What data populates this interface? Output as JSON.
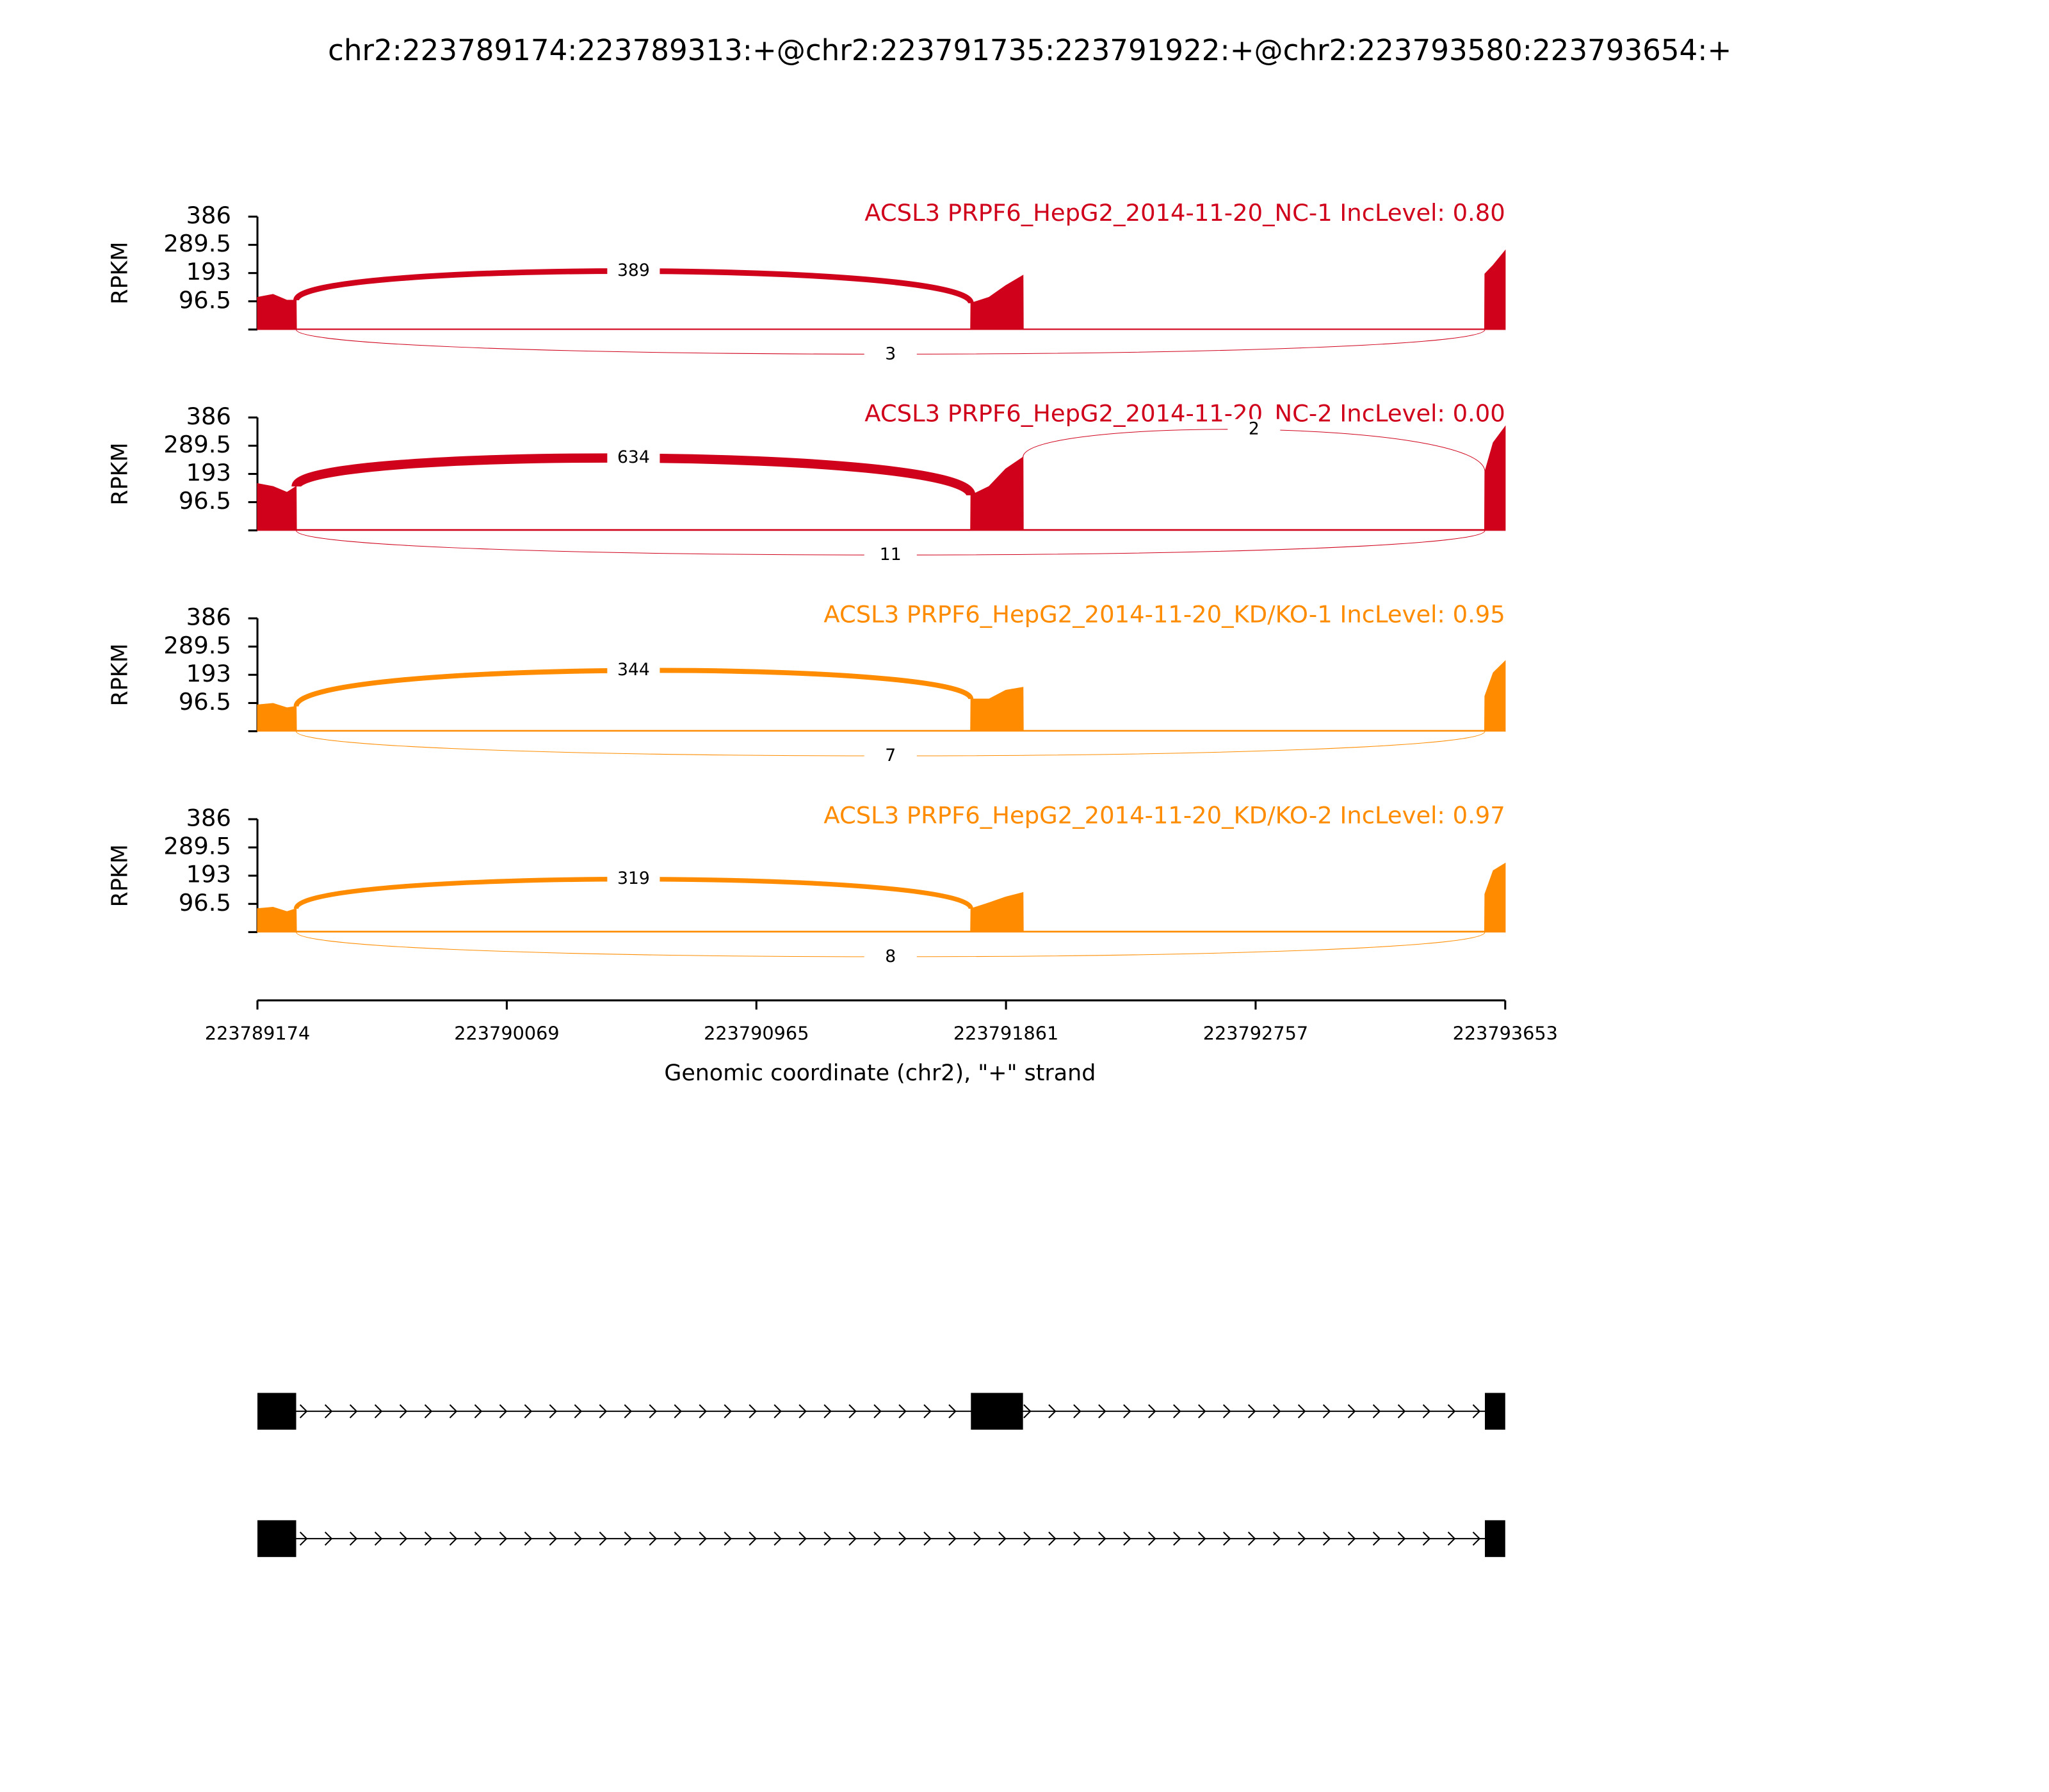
{
  "chart_data": {
    "type": "sashimi",
    "title": "chr2:223789174:223789313:+@chr2:223791735:223791922:+@chr2:223793580:223793654:+",
    "xlabel": "Genomic coordinate (chr2), \"+\" strand",
    "ylabel": "RPKM",
    "xlim": [
      223789174,
      223793653
    ],
    "xticks": [
      223789174,
      223790069,
      223790965,
      223791861,
      223792757,
      223793653
    ],
    "ylim": [
      0,
      386
    ],
    "yticks": [
      96.5,
      193,
      289.5,
      386
    ],
    "coverage_x": [
      223789174,
      223789230,
      223789280,
      223789313,
      223789314,
      223791734,
      223791735,
      223791800,
      223791860,
      223791922,
      223791923,
      223793579,
      223793580,
      223793610,
      223793653
    ],
    "panels": [
      {
        "name": "ACSL3 PRPF6_HepG2_2014-11-20_NC-1 IncLevel: 0.80",
        "color": "#d0021b",
        "coverage": [
          110,
          120,
          100,
          100,
          2,
          2,
          90,
          110,
          150,
          185,
          2,
          2,
          190,
          220,
          270
        ],
        "junctions": [
          {
            "start": 223789313,
            "end": 223791735,
            "count": 389
          },
          {
            "start": 223789313,
            "end": 223793580,
            "count": 3
          }
        ]
      },
      {
        "name": "ACSL3 PRPF6_HepG2_2014-11-20_NC-2 IncLevel: 0.00",
        "color": "#d0021b",
        "coverage": [
          160,
          150,
          130,
          150,
          3,
          3,
          120,
          150,
          210,
          250,
          3,
          3,
          200,
          300,
          355
        ],
        "junctions": [
          {
            "start": 223789313,
            "end": 223791735,
            "count": 634
          },
          {
            "start": 223791922,
            "end": 223793580,
            "count": 2
          },
          {
            "start": 223789313,
            "end": 223793580,
            "count": 11
          }
        ]
      },
      {
        "name": "ACSL3 PRPF6_HepG2_2014-11-20_KD/KO-1 IncLevel: 0.95",
        "color": "#ff8c00",
        "coverage": [
          90,
          95,
          80,
          85,
          3,
          3,
          110,
          110,
          140,
          150,
          3,
          3,
          120,
          200,
          240
        ],
        "junctions": [
          {
            "start": 223789313,
            "end": 223791735,
            "count": 344
          },
          {
            "start": 223789313,
            "end": 223793580,
            "count": 7
          }
        ]
      },
      {
        "name": "ACSL3 PRPF6_HepG2_2014-11-20_KD/KO-2 IncLevel: 0.97",
        "color": "#ff8c00",
        "coverage": [
          80,
          85,
          70,
          80,
          3,
          3,
          80,
          100,
          120,
          135,
          3,
          3,
          130,
          210,
          235
        ],
        "junctions": [
          {
            "start": 223789313,
            "end": 223791735,
            "count": 319
          },
          {
            "start": 223789313,
            "end": 223793580,
            "count": 8
          }
        ]
      }
    ],
    "isoforms": [
      {
        "exons": [
          [
            223789174,
            223789313
          ],
          [
            223791735,
            223791922
          ],
          [
            223793580,
            223793653
          ]
        ]
      },
      {
        "exons": [
          [
            223789174,
            223789313
          ],
          [
            223793580,
            223793653
          ]
        ]
      }
    ]
  }
}
